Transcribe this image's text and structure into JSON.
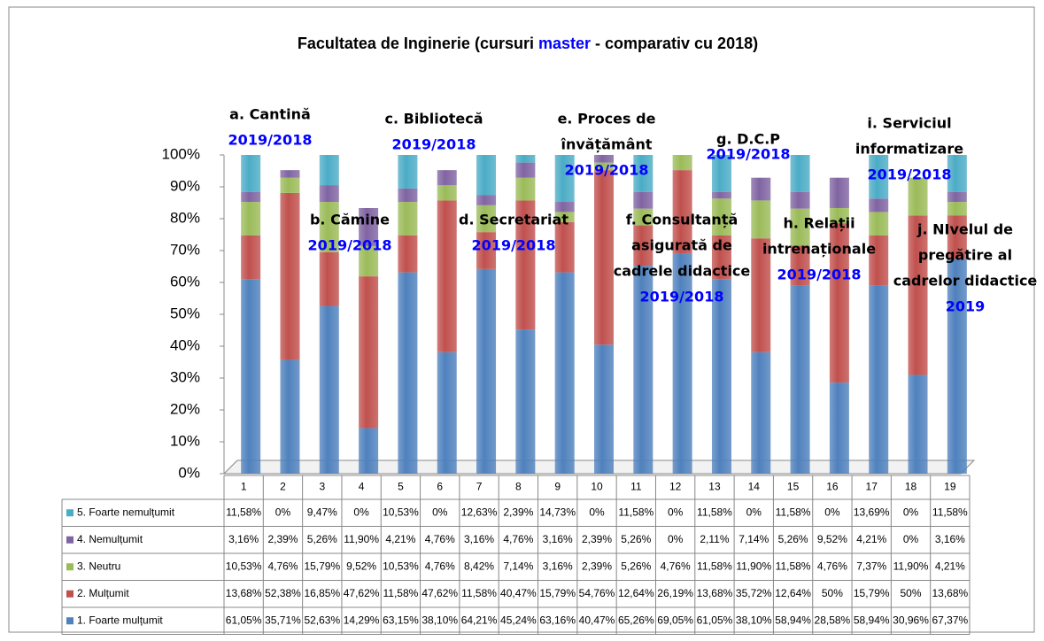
{
  "chart_data": {
    "type": "bar",
    "title_parts": [
      "Facultatea de Inginerie (cursuri ",
      "master",
      " - comparativ cu 2018)"
    ],
    "stacked": true,
    "categories": [
      "1",
      "2",
      "3",
      "4",
      "5",
      "6",
      "7",
      "8",
      "9",
      "10",
      "11",
      "12",
      "13",
      "14",
      "15",
      "16",
      "17",
      "18",
      "19"
    ],
    "ylim": [
      0,
      100
    ],
    "yticks": [
      {
        "value": 0,
        "label": "0%"
      },
      {
        "value": 10,
        "label": "10%"
      },
      {
        "value": 20,
        "label": "20%"
      },
      {
        "value": 30,
        "label": "30%"
      },
      {
        "value": 40,
        "label": "40%"
      },
      {
        "value": 50,
        "label": "50%"
      },
      {
        "value": 60,
        "label": "60%"
      },
      {
        "value": 70,
        "label": "70%"
      },
      {
        "value": 80,
        "label": "80%"
      },
      {
        "value": 90,
        "label": "90%"
      },
      {
        "value": 100,
        "label": "100%"
      }
    ],
    "series": [
      {
        "name": "1. Foarte mulțumit",
        "color": "#4f81bd",
        "values": [
          61.05,
          35.71,
          52.63,
          14.29,
          63.15,
          38.1,
          64.21,
          45.24,
          63.16,
          40.47,
          65.26,
          69.05,
          61.05,
          38.1,
          58.94,
          28.58,
          58.94,
          30.96,
          67.37
        ],
        "value_labels": [
          "61,05%",
          "35,71%",
          "52,63%",
          "14,29%",
          "63,15%",
          "38,10%",
          "64,21%",
          "45,24%",
          "63,16%",
          "40,47%",
          "65,26%",
          "69,05%",
          "61,05%",
          "38,10%",
          "58,94%",
          "28,58%",
          "58,94%",
          "30,96%",
          "67,37%"
        ]
      },
      {
        "name": "2. Mulțumit",
        "color": "#c0504d",
        "values": [
          13.68,
          52.38,
          16.85,
          47.62,
          11.58,
          47.62,
          11.58,
          40.47,
          15.79,
          54.76,
          12.64,
          26.19,
          13.68,
          35.72,
          12.64,
          50,
          15.79,
          50,
          13.68
        ],
        "value_labels": [
          "13,68%",
          "52,38%",
          "16,85%",
          "47,62%",
          "11,58%",
          "47,62%",
          "11,58%",
          "40,47%",
          "15,79%",
          "54,76%",
          "12,64%",
          "26,19%",
          "13,68%",
          "35,72%",
          "12,64%",
          "50%",
          "15,79%",
          "50%",
          "13,68%"
        ]
      },
      {
        "name": "3. Neutru",
        "color": "#9bbb59",
        "values": [
          10.53,
          4.76,
          15.79,
          9.52,
          10.53,
          4.76,
          8.42,
          7.14,
          3.16,
          2.39,
          5.26,
          4.76,
          11.58,
          11.9,
          11.58,
          4.76,
          7.37,
          11.9,
          4.21
        ],
        "value_labels": [
          "10,53%",
          "4,76%",
          "15,79%",
          "9,52%",
          "10,53%",
          "4,76%",
          "8,42%",
          "7,14%",
          "3,16%",
          "2,39%",
          "5,26%",
          "4,76%",
          "11,58%",
          "11,90%",
          "11,58%",
          "4,76%",
          "7,37%",
          "11,90%",
          "4,21%"
        ]
      },
      {
        "name": "4. Nemulțumit",
        "color": "#8064a2",
        "values": [
          3.16,
          2.39,
          5.26,
          11.9,
          4.21,
          4.76,
          3.16,
          4.76,
          3.16,
          2.39,
          5.26,
          0,
          2.11,
          7.14,
          5.26,
          9.52,
          4.21,
          0,
          3.16
        ],
        "value_labels": [
          "3,16%",
          "2,39%",
          "5,26%",
          "11,90%",
          "4,21%",
          "4,76%",
          "3,16%",
          "4,76%",
          "3,16%",
          "2,39%",
          "5,26%",
          "0%",
          "2,11%",
          "7,14%",
          "5,26%",
          "9,52%",
          "4,21%",
          "0%",
          "3,16%"
        ]
      },
      {
        "name": "5. Foarte nemulțumit",
        "color": "#4bacc6",
        "values": [
          11.58,
          0,
          9.47,
          0,
          10.53,
          0,
          12.63,
          2.39,
          14.73,
          0,
          11.58,
          0,
          11.58,
          0,
          11.58,
          0,
          13.69,
          0,
          11.58
        ],
        "value_labels": [
          "11,58%",
          "0%",
          "9,47%",
          "0%",
          "10,53%",
          "0%",
          "12,63%",
          "2,39%",
          "14,73%",
          "0%",
          "11,58%",
          "0%",
          "11,58%",
          "0%",
          "11,58%",
          "0%",
          "13,69%",
          "0%",
          "11,58%"
        ]
      }
    ],
    "annotations": [
      {
        "lines": [
          "a. Cantină"
        ],
        "year": "2019/2018"
      },
      {
        "lines": [
          "b. Cămine"
        ],
        "year": "2019/2018"
      },
      {
        "lines": [
          "c. Bibliotecă"
        ],
        "year": "2019/2018"
      },
      {
        "lines": [
          "d. Secretariat"
        ],
        "year": "2019/2018"
      },
      {
        "lines": [
          "e. Proces de",
          "învățământ"
        ],
        "year": "2019/2018"
      },
      {
        "lines": [
          "f. Consultanță",
          "asigurată de",
          "cadrele didactice"
        ],
        "year": "2019/2018"
      },
      {
        "lines": [
          "g. D.C.P"
        ],
        "year": "2019/2018"
      },
      {
        "lines": [
          "h. Relații",
          "intrenaționale"
        ],
        "year": "2019/2018"
      },
      {
        "lines": [
          "i. Serviciul",
          "informatizare"
        ],
        "year": "2019/2018"
      },
      {
        "lines": [
          "j. NIvelul de",
          "pregătire al",
          "cadrelor didactice"
        ],
        "year": "2019"
      }
    ]
  }
}
